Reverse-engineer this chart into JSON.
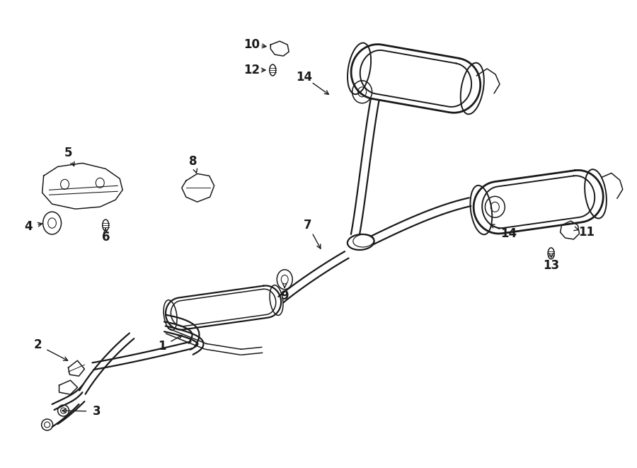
{
  "bg_color": "#ffffff",
  "line_color": "#1a1a1a",
  "fig_width": 9.0,
  "fig_height": 6.61,
  "dpi": 100,
  "lw_main": 1.6,
  "lw_thin": 1.1,
  "lw_heavy": 2.0
}
